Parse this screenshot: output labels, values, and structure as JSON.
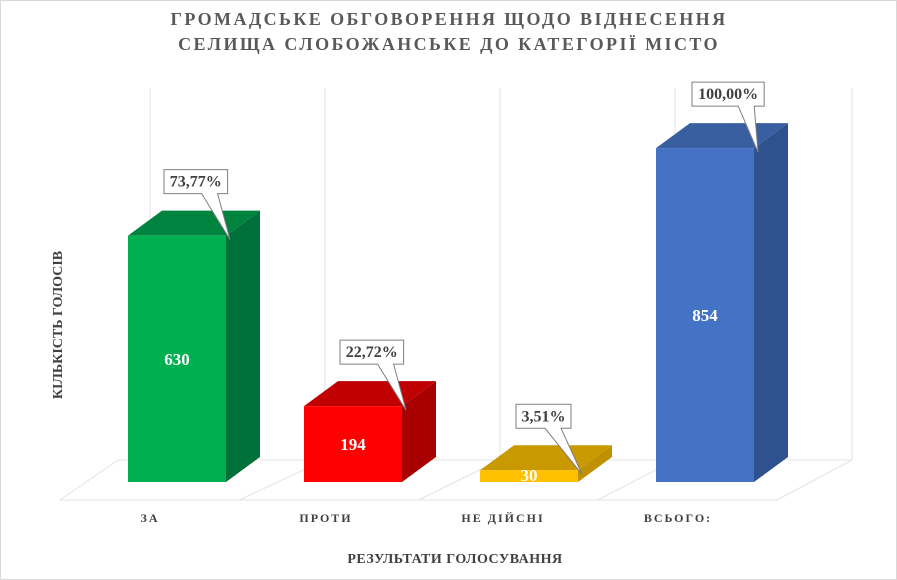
{
  "chart_data": {
    "type": "bar",
    "title_lines": [
      "ГРОМАДСЬКЕ ОБГОВОРЕННЯ ЩОДО ВІДНЕСЕННЯ",
      "СЕЛИЩА СЛОБОЖАНСЬКЕ ДО КАТЕГОРІЇ МІСТО"
    ],
    "xlabel": "РЕЗУЛЬТАТИ ГОЛОСУВАННЯ",
    "ylabel": "КІЛЬКІСТЬ ГОЛОСІВ",
    "categories": [
      "ЗА",
      "ПРОТИ",
      "НЕ ДІЙСНІ",
      "ВСЬОГО:"
    ],
    "values": [
      630,
      194,
      30,
      854
    ],
    "percent_labels": [
      "73,77%",
      "22,72%",
      "3,51%",
      "100,00%"
    ],
    "value_labels": [
      "630",
      "194",
      "30",
      "854"
    ],
    "ylim": [
      0,
      1000
    ],
    "grid": false,
    "legend": "none",
    "colors": {
      "front": [
        "#00B050",
        "#FF0000",
        "#FFC000",
        "#4472C4"
      ],
      "side": [
        "#00703A",
        "#A80000",
        "#BF9000",
        "#2F528F"
      ],
      "top": [
        "#00833F",
        "#C00000",
        "#C89A00",
        "#3A5FA0"
      ],
      "text": "#404040",
      "value_text": "#ffffff"
    }
  }
}
